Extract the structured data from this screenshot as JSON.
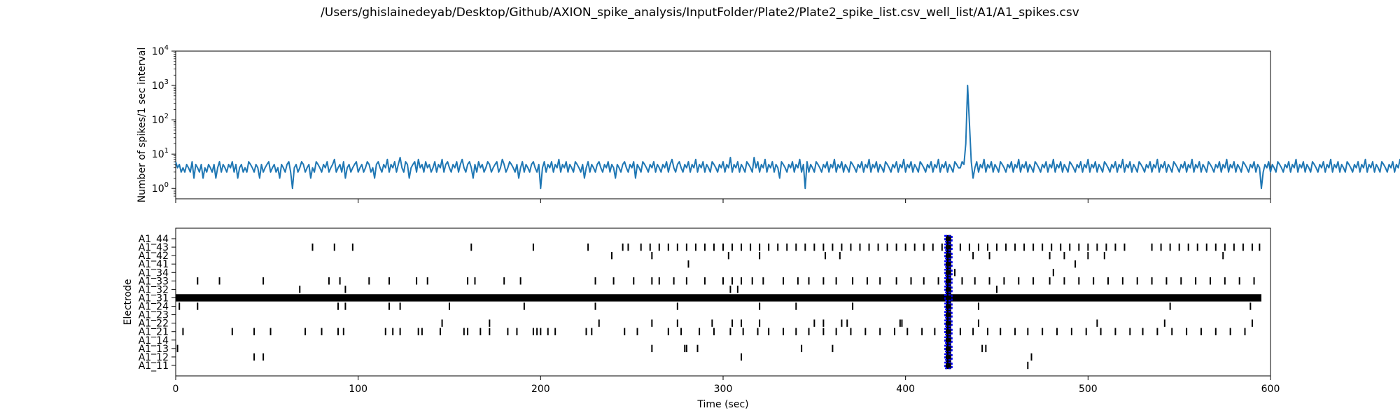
{
  "figure": {
    "title": "/Users/ghislainedeyab/Desktop/Github/AXION_spike_analysis/InputFolder/Plate2/Plate2_spike_list.csv_well_list/A1/A1_spikes.csv"
  },
  "chart_data": [
    {
      "type": "line",
      "title": "",
      "xlabel": "",
      "ylabel": "Number of spikes/1 sec interval",
      "yscale": "log",
      "xlim": [
        0,
        600
      ],
      "ylim": [
        0.5,
        10000
      ],
      "yticks": [
        1,
        10,
        100,
        1000,
        10000
      ],
      "ytick_labels": [
        "10^0",
        "10^1",
        "10^2",
        "10^3",
        "10^4"
      ],
      "grid": false,
      "color": "#1f77b4",
      "series": [
        {
          "x_start": 0,
          "x_step": 1,
          "values": [
            6,
            4,
            5,
            3,
            4,
            3,
            5,
            4,
            3,
            6,
            2,
            5,
            4,
            3,
            5,
            2,
            4,
            3,
            5,
            4,
            3,
            5,
            2,
            4,
            6,
            3,
            5,
            4,
            3,
            5,
            4,
            6,
            3,
            5,
            2,
            4,
            5,
            3,
            4,
            3,
            6,
            5,
            4,
            3,
            5,
            4,
            2,
            5,
            3,
            4,
            5,
            6,
            3,
            4,
            5,
            3,
            4,
            2,
            5,
            4,
            3,
            5,
            6,
            3,
            1,
            4,
            5,
            3,
            4,
            6,
            5,
            3,
            4,
            5,
            2,
            4,
            3,
            6,
            5,
            4,
            3,
            5,
            4,
            6,
            3,
            4,
            5,
            7,
            3,
            4,
            5,
            3,
            6,
            2,
            4,
            5,
            3,
            4,
            5,
            6,
            3,
            4,
            5,
            3,
            4,
            6,
            5,
            3,
            4,
            2,
            5,
            6,
            4,
            3,
            5,
            4,
            7,
            3,
            5,
            4,
            6,
            3,
            5,
            8,
            4,
            3,
            6,
            5,
            2,
            4,
            5,
            6,
            3,
            7,
            4,
            5,
            3,
            6,
            4,
            5,
            3,
            4,
            6,
            3,
            5,
            4,
            7,
            3,
            5,
            6,
            4,
            3,
            5,
            4,
            6,
            3,
            5,
            7,
            4,
            3,
            5,
            6,
            4,
            2,
            5,
            3,
            6,
            4,
            5,
            3,
            4,
            6,
            5,
            3,
            4,
            5,
            6,
            3,
            4,
            7,
            5,
            3,
            4,
            6,
            5,
            4,
            3,
            5,
            2,
            4,
            6,
            3,
            5,
            4,
            3,
            5,
            6,
            4,
            3,
            5,
            1,
            4,
            6,
            3,
            5,
            4,
            6,
            3,
            5,
            4,
            7,
            3,
            5,
            4,
            6,
            3,
            5,
            4,
            3,
            6,
            5,
            4,
            3,
            5,
            2,
            4,
            6,
            3,
            5,
            4,
            3,
            5,
            6,
            4,
            3,
            5,
            4,
            6,
            3,
            5,
            4,
            2,
            5,
            4,
            3,
            5,
            6,
            4,
            3,
            5,
            4,
            6,
            2,
            5,
            4,
            3,
            6,
            5,
            4,
            3,
            5,
            4,
            6,
            3,
            5,
            4,
            3,
            5,
            4,
            6,
            3,
            5,
            7,
            4,
            3,
            5,
            6,
            4,
            3,
            5,
            4,
            6,
            3,
            5,
            4,
            7,
            3,
            5,
            4,
            6,
            3,
            5,
            4,
            3,
            6,
            5,
            4,
            3,
            5,
            4,
            6,
            3,
            5,
            4,
            8,
            3,
            5,
            4,
            6,
            3,
            5,
            4,
            3,
            6,
            5,
            4,
            3,
            8,
            4,
            6,
            3,
            5,
            4,
            7,
            3,
            5,
            4,
            6,
            3,
            5,
            4,
            2,
            6,
            5,
            4,
            3,
            5,
            4,
            6,
            3,
            5,
            4,
            7,
            3,
            5,
            1,
            6,
            3,
            5,
            4,
            3,
            6,
            5,
            4,
            3,
            5,
            4,
            6,
            3,
            5,
            4,
            7,
            3,
            5,
            4,
            6,
            3,
            5,
            4,
            3,
            6,
            5,
            4,
            3,
            5,
            4,
            6,
            3,
            5,
            4,
            7,
            3,
            5,
            4,
            6,
            3,
            5,
            4,
            3,
            6,
            5,
            4,
            3,
            5,
            4,
            6,
            3,
            5,
            4,
            7,
            3,
            5,
            4,
            6,
            3,
            5,
            4,
            3,
            6,
            5,
            4,
            3,
            5,
            4,
            6,
            3,
            5,
            4,
            7,
            3,
            5,
            4,
            6,
            3,
            5,
            4,
            3,
            6,
            5,
            4,
            4,
            6,
            5,
            20,
            1000,
            80,
            6,
            2,
            4,
            6,
            3,
            5,
            4,
            7,
            3,
            5,
            4,
            6,
            3,
            5,
            4,
            3,
            6,
            5,
            4,
            3,
            5,
            4,
            6,
            3,
            5,
            4,
            7,
            3,
            5,
            4,
            6,
            3,
            5,
            4,
            3,
            6,
            5,
            4,
            3,
            5,
            4,
            6,
            3,
            5,
            4,
            7,
            3,
            5,
            4,
            6,
            3,
            5,
            4,
            3,
            6,
            5,
            4,
            3,
            5,
            4,
            6,
            3,
            5,
            4,
            7,
            3,
            5,
            4,
            6,
            3,
            5,
            4,
            3,
            6,
            5,
            4,
            3,
            5,
            4,
            6,
            3,
            5,
            4,
            7,
            3,
            5,
            4,
            6,
            3,
            5,
            4,
            3,
            6,
            5,
            4,
            3,
            5,
            4,
            6,
            3,
            5,
            4,
            7,
            3,
            5,
            4,
            6,
            3,
            5,
            4,
            3,
            6,
            5,
            4,
            3,
            5,
            4,
            6,
            3,
            5,
            4,
            7,
            3,
            5,
            4,
            6,
            3,
            5,
            4,
            3,
            6,
            5,
            4,
            3,
            5,
            4,
            6,
            3,
            5,
            4,
            7,
            3,
            5,
            4,
            6,
            3,
            5,
            4,
            3,
            6,
            5,
            4,
            3,
            5,
            4,
            6,
            3,
            5,
            4,
            1,
            3,
            5,
            4,
            6,
            3,
            5,
            4,
            3,
            6,
            5,
            4,
            3,
            5,
            4,
            6,
            3,
            5,
            4,
            7,
            3,
            5,
            4,
            6,
            3,
            5,
            4,
            3,
            6,
            5,
            4,
            3,
            5,
            4,
            6,
            3,
            5,
            4,
            7,
            3,
            5,
            4,
            6,
            3,
            5,
            4,
            3,
            6,
            5,
            4,
            3,
            5,
            4,
            6,
            3,
            5,
            4,
            7,
            3,
            5,
            4,
            6,
            3,
            5,
            4,
            3,
            6,
            5,
            4,
            3,
            5,
            4,
            6,
            3,
            5,
            4,
            7,
            3,
            5,
            4,
            6,
            3,
            5,
            4,
            3,
            6,
            5,
            4,
            3,
            11,
            4,
            6,
            3,
            5,
            4,
            7,
            3,
            5,
            4,
            6,
            3,
            5,
            4,
            3,
            6,
            5,
            4,
            3,
            5,
            4,
            6,
            3,
            5,
            4,
            7,
            3,
            5,
            4,
            6,
            3,
            5,
            4,
            3,
            6,
            5,
            4,
            3,
            5,
            8,
            6,
            3,
            5,
            4,
            7,
            3,
            5,
            4,
            6,
            3,
            9,
            4,
            3,
            6,
            5,
            4,
            3,
            10,
            4,
            6,
            3,
            5
          ]
        }
      ]
    },
    {
      "type": "scatter",
      "title": "",
      "xlabel": "Time (sec)",
      "ylabel": "Electrode",
      "xlim": [
        0,
        600
      ],
      "xticks": [
        0,
        100,
        200,
        300,
        400,
        500,
        600
      ],
      "grid": false,
      "marker": "|",
      "marker_color": "#000000",
      "electrodes": [
        "A1_11",
        "A1_12",
        "A1_13",
        "A1_14",
        "A1_21",
        "A1_22",
        "A1_23",
        "A1_24",
        "A1_31",
        "A1_32",
        "A1_33",
        "A1_34",
        "A1_41",
        "A1_42",
        "A1_43",
        "A1_44"
      ],
      "spike_times": {
        "A1_11": [
          467
        ],
        "A1_12": [
          43,
          48,
          310,
          469
        ],
        "A1_13": [
          1,
          261,
          279,
          280,
          286,
          343,
          360,
          442,
          444
        ],
        "A1_14": [],
        "A1_21": [
          4,
          31,
          43,
          52,
          71,
          80,
          89,
          92,
          115,
          119,
          123,
          133,
          135,
          145,
          158,
          160,
          167,
          172,
          182,
          187,
          196,
          198,
          200,
          204,
          208,
          225,
          228,
          246,
          253,
          270,
          277,
          287,
          295,
          304,
          311,
          319,
          325,
          333,
          340,
          347,
          355,
          362,
          370,
          378,
          386,
          394,
          401,
          409,
          416,
          430,
          437,
          445,
          452,
          460,
          467,
          475,
          483,
          491,
          499,
          507,
          515,
          523,
          530,
          538,
          546,
          554,
          562,
          570,
          578,
          586
        ],
        "A1_22": [
          146,
          172,
          232,
          261,
          275,
          294,
          305,
          310,
          320,
          350,
          355,
          365,
          368,
          397,
          398,
          440,
          505,
          542,
          590
        ],
        "A1_23": [],
        "A1_24": [
          2,
          12,
          89,
          93,
          117,
          123,
          150,
          191,
          230,
          275,
          320,
          340,
          371,
          440,
          545,
          589
        ],
        "A1_31": [],
        "A1_32": [
          68,
          93,
          304,
          308,
          450
        ],
        "A1_33": [
          12,
          24,
          48,
          84,
          90,
          106,
          117,
          132,
          138,
          160,
          164,
          180,
          189,
          230,
          240,
          251,
          261,
          265,
          273,
          280,
          290,
          300,
          305,
          310,
          316,
          322,
          333,
          341,
          347,
          355,
          362,
          371,
          379,
          386,
          395,
          403,
          410,
          418,
          431,
          438,
          446,
          454,
          462,
          470,
          479,
          487,
          495,
          503,
          511,
          519,
          527,
          535,
          543,
          551,
          559,
          567,
          575,
          583,
          591
        ],
        "A1_34": [
          427,
          481
        ],
        "A1_41": [
          281,
          493
        ],
        "A1_42": [
          239,
          261,
          303,
          320,
          356,
          364,
          437,
          446,
          479,
          487,
          500,
          509,
          574
        ],
        "A1_43": [
          75,
          87,
          97,
          162,
          196,
          226,
          245,
          248,
          255,
          260,
          265,
          270,
          275,
          280,
          285,
          290,
          295,
          300,
          305,
          310,
          315,
          320,
          325,
          330,
          335,
          340,
          345,
          350,
          355,
          360,
          365,
          370,
          375,
          380,
          385,
          390,
          395,
          400,
          405,
          410,
          415,
          420,
          430,
          435,
          440,
          445,
          450,
          455,
          460,
          465,
          470,
          475,
          480,
          485,
          490,
          495,
          500,
          505,
          510,
          515,
          520,
          535,
          540,
          545,
          550,
          555,
          560,
          565,
          570,
          575,
          580,
          585,
          590,
          594
        ],
        "A1_44": []
      },
      "continuous_rows": {
        "A1_31": [
          0,
          595
        ]
      },
      "burst_highlight": {
        "x_start": 422,
        "x_end": 425,
        "color": "#0000ff"
      }
    }
  ]
}
